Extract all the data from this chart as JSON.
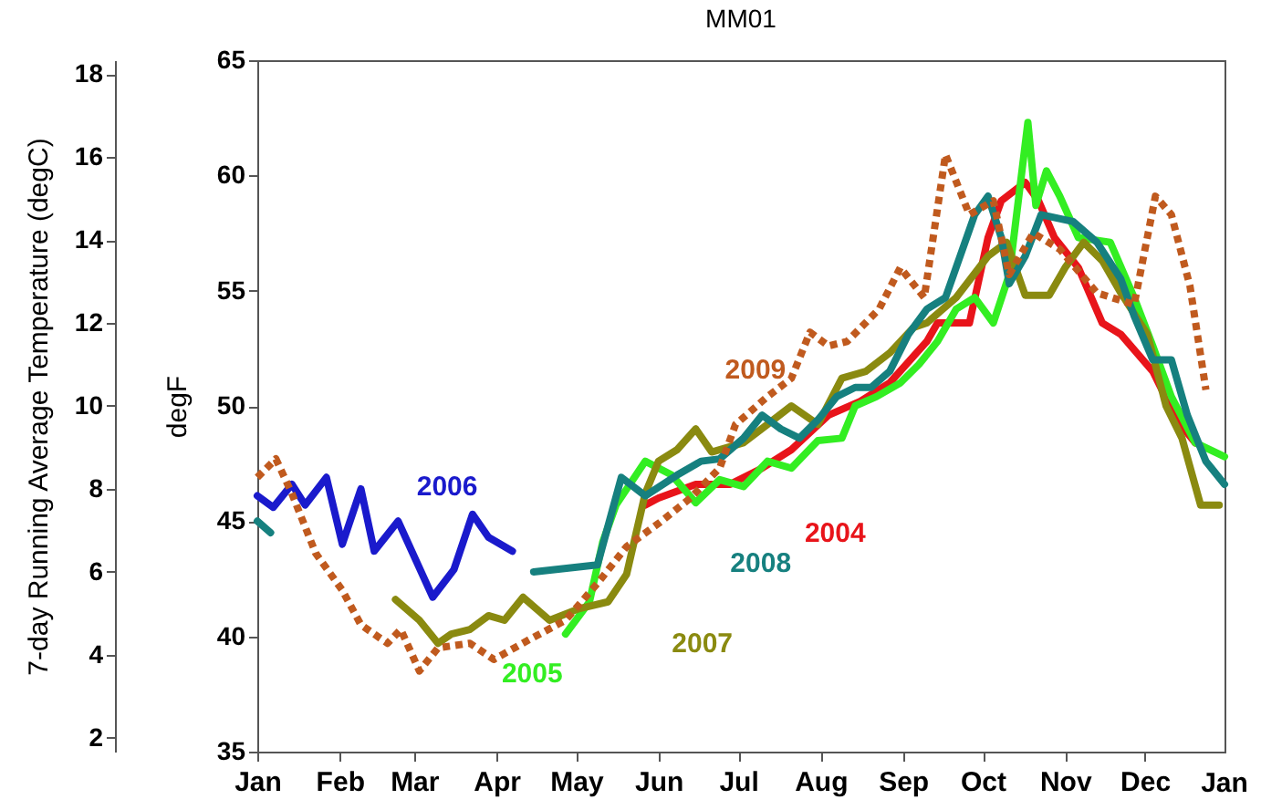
{
  "chart_data": {
    "type": "line",
    "title": "MM01",
    "ylabel": "degF",
    "y2label": "7-day Running Average Temperature (degC)",
    "xlim": [
      "--01-01",
      "--12-31"
    ],
    "xticks": [
      {
        "value": "--01-01",
        "label": "Jan"
      },
      {
        "value": "--02-01",
        "label": "Feb"
      },
      {
        "value": "--03-01",
        "label": "Mar"
      },
      {
        "value": "--04-01",
        "label": "Apr"
      },
      {
        "value": "--05-01",
        "label": "May"
      },
      {
        "value": "--06-01",
        "label": "Jun"
      },
      {
        "value": "--07-01",
        "label": "Jul"
      },
      {
        "value": "--08-01",
        "label": "Aug"
      },
      {
        "value": "--09-01",
        "label": "Sep"
      },
      {
        "value": "--10-01",
        "label": "Oct"
      },
      {
        "value": "--11-01",
        "label": "Nov"
      },
      {
        "value": "--12-01",
        "label": "Dec"
      }
    ],
    "annotations": [
      "Jan"
    ],
    "ylim": [
      35,
      65
    ],
    "yticks": [
      35,
      40,
      45,
      50,
      55,
      60,
      65
    ],
    "y2lim": [
      1.67,
      18.33
    ],
    "y2ticks": [
      2,
      4,
      6,
      8,
      10,
      12,
      14,
      16,
      18
    ],
    "grid": false,
    "legend": false,
    "series": [
      {
        "name": "2004",
        "color": "#e8141a",
        "x": [
          "--05-27",
          "--06-01",
          "--06-15",
          "--06-28",
          "--07-10",
          "--07-21",
          "--08-04",
          "--08-16",
          "--08-27",
          "--09-10",
          "--09-14",
          "--09-26",
          "--10-03",
          "--10-08",
          "--10-17",
          "--10-22",
          "--10-28",
          "--11-06",
          "--11-15",
          "--11-22",
          "--12-04",
          "--12-13",
          "--12-20"
        ],
        "values": [
          45.7,
          46.0,
          46.6,
          46.6,
          47.3,
          48.1,
          49.6,
          50.2,
          51.0,
          52.8,
          53.6,
          53.6,
          57.3,
          58.9,
          59.7,
          58.9,
          57.3,
          56.0,
          53.6,
          53.1,
          51.5,
          49.4,
          48.4
        ]
      },
      {
        "name": "2005",
        "color": "#33ee22",
        "x": [
          "--04-27",
          "--05-06",
          "--05-11",
          "--05-16",
          "--05-27",
          "--06-06",
          "--06-15",
          "--06-24",
          "--07-03",
          "--07-12",
          "--07-21",
          "--07-31",
          "--08-09",
          "--08-14",
          "--08-22",
          "--08-31",
          "--09-07",
          "--09-14",
          "--09-21",
          "--09-28",
          "--10-05",
          "--10-11",
          "--10-18",
          "--10-21",
          "--10-25",
          "--10-30",
          "--11-06",
          "--11-18",
          "--11-27",
          "--12-04",
          "--12-11",
          "--12-20",
          "--12-31"
        ],
        "values": [
          40.1,
          41.5,
          44.1,
          45.7,
          47.6,
          47.0,
          45.8,
          46.8,
          46.5,
          47.6,
          47.3,
          48.5,
          48.6,
          50.0,
          50.4,
          51.0,
          51.8,
          52.8,
          54.2,
          54.7,
          53.6,
          55.7,
          62.3,
          58.7,
          60.2,
          59.1,
          57.3,
          57.1,
          54.7,
          52.6,
          50.4,
          48.4,
          47.8
        ]
      },
      {
        "name": "2006",
        "color": "#1a1acc",
        "x": [
          "--01-01",
          "--01-07",
          "--01-14",
          "--01-19",
          "--01-27",
          "--02-02",
          "--02-09",
          "--02-14",
          "--02-23",
          "--03-08",
          "--03-16",
          "--03-23",
          "--03-29",
          "--04-07"
        ],
        "values": [
          46.1,
          45.6,
          46.6,
          45.7,
          46.9,
          44.0,
          46.4,
          43.7,
          45.0,
          41.7,
          42.9,
          45.3,
          44.3,
          43.7
        ]
      },
      {
        "name": "2007",
        "color": "#8a8a10",
        "x": [
          "--02-22",
          "--03-03",
          "--03-10",
          "--03-15",
          "--03-22",
          "--03-29",
          "--04-04",
          "--04-11",
          "--04-21",
          "--05-02",
          "--05-13",
          "--05-20",
          "--05-27",
          "--06-01",
          "--06-08",
          "--06-15",
          "--06-21",
          "--07-03",
          "--07-12",
          "--07-21",
          "--07-31",
          "--08-09",
          "--08-18",
          "--08-27",
          "--09-05",
          "--09-10",
          "--09-21",
          "--10-03",
          "--10-10",
          "--10-17",
          "--10-26",
          "--11-01",
          "--11-08",
          "--11-15",
          "--11-22",
          "--12-02",
          "--12-09",
          "--12-15",
          "--12-22",
          "--12-29"
        ],
        "values": [
          41.6,
          40.7,
          39.7,
          40.1,
          40.3,
          40.9,
          40.7,
          41.7,
          40.7,
          41.2,
          41.5,
          42.7,
          46.2,
          47.6,
          48.1,
          49.0,
          48.0,
          48.4,
          49.2,
          50.0,
          49.2,
          51.2,
          51.5,
          52.3,
          53.4,
          53.6,
          54.7,
          56.5,
          57.1,
          54.8,
          54.8,
          56.0,
          57.1,
          56.3,
          54.9,
          53.1,
          50.0,
          48.6,
          45.7,
          45.7
        ]
      },
      {
        "name": "2008",
        "color": "#16807f",
        "x": [
          "--01-01",
          "--01-06",
          "--02-15",
          "--04-15",
          "--05-09",
          "--05-18",
          "--05-27",
          "--06-08",
          "--06-17",
          "--06-24",
          "--07-03",
          "--07-10",
          "--07-17",
          "--07-24",
          "--07-31",
          "--08-07",
          "--08-14",
          "--08-20",
          "--08-27",
          "--09-03",
          "--09-10",
          "--09-17",
          "--09-28",
          "--10-03",
          "--10-08",
          "--10-11",
          "--10-17",
          "--10-23",
          "--11-04",
          "--11-13",
          "--11-22",
          "--11-27",
          "--12-04",
          "--12-11",
          "--12-17",
          "--12-24",
          "--12-31"
        ],
        "values": [
          45.0,
          44.5,
          null,
          42.8,
          43.1,
          46.9,
          46.1,
          47.0,
          47.6,
          47.7,
          48.6,
          49.6,
          49.0,
          48.6,
          49.4,
          50.4,
          50.8,
          50.8,
          51.5,
          53.1,
          54.2,
          54.7,
          58.3,
          59.1,
          57.3,
          55.3,
          56.5,
          58.3,
          58.0,
          57.1,
          55.5,
          53.9,
          52.0,
          52.0,
          49.6,
          47.6,
          46.6
        ]
      },
      {
        "name": "2009",
        "color": "#c05a1e",
        "line_style": "dotted",
        "x": [
          "--01-01",
          "--01-08",
          "--01-14",
          "--01-23",
          "--02-02",
          "--02-09",
          "--02-19",
          "--02-24",
          "--03-03",
          "--03-10",
          "--03-22",
          "--03-31",
          "--04-14",
          "--04-27",
          "--05-09",
          "--05-20",
          "--06-01",
          "--06-13",
          "--06-24",
          "--06-30",
          "--07-12",
          "--07-21",
          "--07-28",
          "--08-04",
          "--08-11",
          "--08-23",
          "--08-31",
          "--09-09",
          "--09-17",
          "--09-26",
          "--10-05",
          "--10-11",
          "--10-20",
          "--10-30",
          "--11-13",
          "--11-27",
          "--12-05",
          "--12-11",
          "--12-18",
          "--12-24"
        ],
        "values": [
          46.9,
          47.7,
          46.2,
          43.6,
          42.0,
          40.5,
          39.7,
          40.3,
          38.5,
          39.5,
          39.7,
          39.0,
          39.9,
          40.7,
          42.3,
          43.9,
          44.9,
          46.0,
          47.3,
          49.2,
          50.4,
          51.2,
          53.2,
          52.6,
          52.8,
          54.2,
          56.0,
          54.7,
          60.9,
          58.3,
          58.9,
          55.7,
          57.5,
          56.8,
          54.9,
          54.4,
          59.1,
          58.3,
          55.2,
          50.7
        ]
      }
    ]
  }
}
